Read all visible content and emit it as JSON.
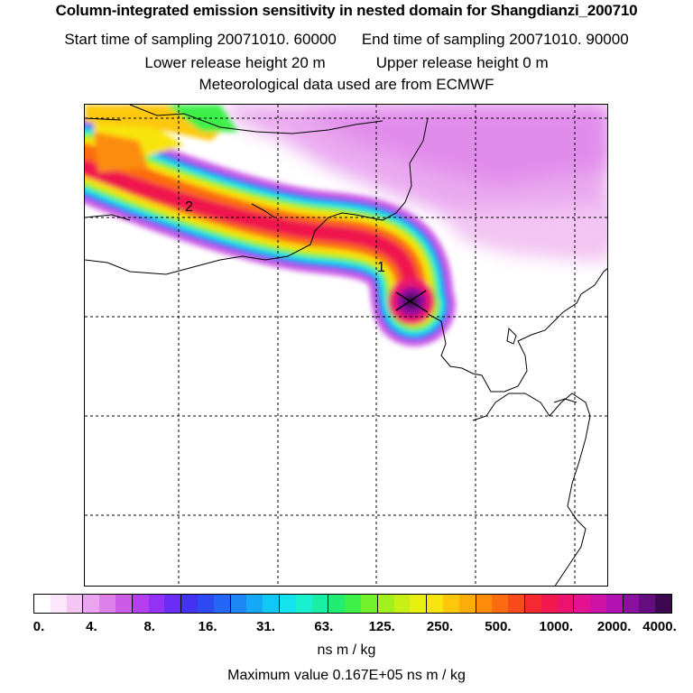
{
  "header": {
    "title": "Column-integrated emission sensitivity in nested domain for Shangdianzi_200710",
    "start_label": "Start time of sampling 20071010. 60000",
    "end_label": "End time of sampling 20071010. 90000",
    "lower_label": "Lower release height   20 m",
    "upper_label": "Upper release height    0 m",
    "met_label": "Meteorological data used are from ECMWF"
  },
  "map": {
    "plume_labels": [
      "1",
      "2"
    ]
  },
  "colorbar": {
    "tick_labels": [
      "0.",
      "4.",
      "8.",
      "16.",
      "31.",
      "63.",
      "125.",
      "250.",
      "500.",
      "1000.",
      "2000.",
      "4000."
    ],
    "colors": [
      "#ffffff",
      "#fbe6fb",
      "#f3c6f3",
      "#e9a5ef",
      "#dd80ea",
      "#cc5ce6",
      "#b43ef0",
      "#9331f5",
      "#6a2cf7",
      "#4233f3",
      "#2d4af2",
      "#2466f5",
      "#1e86f6",
      "#14a8f7",
      "#10c8f5",
      "#14e3ee",
      "#18f0d0",
      "#1aeea4",
      "#22ec72",
      "#3ef048",
      "#72f02c",
      "#a2f01e",
      "#c8f016",
      "#e8f010",
      "#f8e40e",
      "#fdc80c",
      "#fdac0a",
      "#fc8c0a",
      "#fb6c10",
      "#f84a1a",
      "#f42a30",
      "#f0184e",
      "#ec1270",
      "#e21290",
      "#cf12a6",
      "#b212b0",
      "#8c10a0",
      "#650c80",
      "#3c0850"
    ],
    "units": "ns m / kg",
    "max_value_label": "Maximum value  0.167E+05 ns m / kg"
  }
}
